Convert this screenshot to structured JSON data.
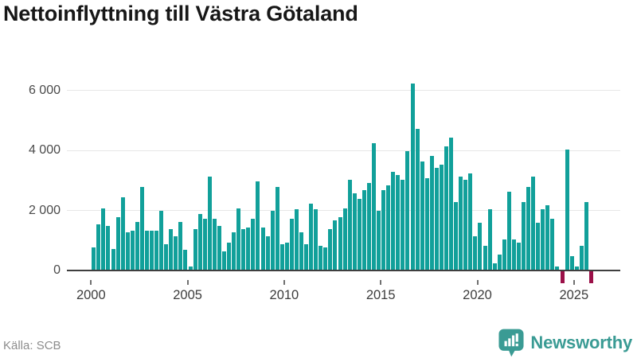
{
  "title": "Nettoinflyttning till Västra Götaland",
  "source": "Källa: SCB",
  "branding": {
    "name": "Newsworthy",
    "icon": "newsworthy-speech-bubble-bar-chart-icon"
  },
  "chart_data": {
    "type": "bar",
    "title": "Nettoinflyttning till Västra Götaland",
    "frequency": "quarterly",
    "start_period": "2000 Q1",
    "end_period": "2025 Q4",
    "series": [
      {
        "year": 2000,
        "values": [
          750,
          1500,
          2050,
          1450
        ]
      },
      {
        "year": 2001,
        "values": [
          700,
          1750,
          2400,
          1250
        ]
      },
      {
        "year": 2002,
        "values": [
          1300,
          1600,
          2750,
          1300
        ]
      },
      {
        "year": 2003,
        "values": [
          1300,
          1300,
          1950,
          850
        ]
      },
      {
        "year": 2004,
        "values": [
          1350,
          1100,
          1600,
          650
        ]
      },
      {
        "year": 2005,
        "values": [
          100,
          1350,
          1850,
          1700
        ]
      },
      {
        "year": 2006,
        "values": [
          3100,
          1700,
          1450,
          600
        ]
      },
      {
        "year": 2007,
        "values": [
          900,
          1250,
          2050,
          1350
        ]
      },
      {
        "year": 2008,
        "values": [
          1400,
          1700,
          2950,
          1400
        ]
      },
      {
        "year": 2009,
        "values": [
          1100,
          1950,
          2750,
          850
        ]
      },
      {
        "year": 2010,
        "values": [
          900,
          1700,
          2000,
          1250
        ]
      },
      {
        "year": 2011,
        "values": [
          850,
          2200,
          2000,
          800
        ]
      },
      {
        "year": 2012,
        "values": [
          750,
          1350,
          1650,
          1750
        ]
      },
      {
        "year": 2013,
        "values": [
          2050,
          3000,
          2550,
          2350
        ]
      },
      {
        "year": 2014,
        "values": [
          2650,
          2900,
          4200,
          1950
        ]
      },
      {
        "year": 2015,
        "values": [
          2650,
          2800,
          3250,
          3150
        ]
      },
      {
        "year": 2016,
        "values": [
          3000,
          3950,
          6200,
          4700
        ]
      },
      {
        "year": 2017,
        "values": [
          3600,
          3050,
          3800,
          3400
        ]
      },
      {
        "year": 2018,
        "values": [
          3500,
          4100,
          4400,
          2250
        ]
      },
      {
        "year": 2019,
        "values": [
          3100,
          3000,
          3200,
          1100
        ]
      },
      {
        "year": 2020,
        "values": [
          1550,
          800,
          2000,
          200
        ]
      },
      {
        "year": 2021,
        "values": [
          500,
          1000,
          2600,
          1000
        ]
      },
      {
        "year": 2022,
        "values": [
          900,
          2250,
          2750,
          3100
        ]
      },
      {
        "year": 2023,
        "values": [
          1550,
          2000,
          2150,
          1700
        ]
      },
      {
        "year": 2024,
        "values": [
          100,
          -400,
          4000,
          450
        ]
      },
      {
        "year": 2025,
        "values": [
          100,
          800,
          2250,
          -400
        ]
      }
    ],
    "y_ticks": [
      0,
      2000,
      4000,
      6000
    ],
    "y_tick_labels": [
      "0",
      "2 000",
      "4 000",
      "6 000"
    ],
    "x_tick_years": [
      2000,
      2005,
      2010,
      2015,
      2020,
      2025
    ],
    "ylim": [
      -500,
      6500
    ],
    "grid": "horizontal",
    "legend": "none",
    "colors": {
      "positive_bar": "#11a09a",
      "negative_bar": "#9b1048",
      "gridline": "#e7e7e7",
      "axis": "#3f3f3f"
    }
  }
}
